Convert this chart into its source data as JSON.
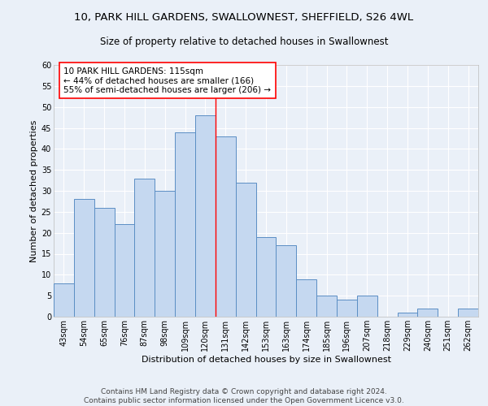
{
  "title_line1": "10, PARK HILL GARDENS, SWALLOWNEST, SHEFFIELD, S26 4WL",
  "title_line2": "Size of property relative to detached houses in Swallownest",
  "xlabel": "Distribution of detached houses by size in Swallownest",
  "ylabel": "Number of detached properties",
  "categories": [
    "43sqm",
    "54sqm",
    "65sqm",
    "76sqm",
    "87sqm",
    "98sqm",
    "109sqm",
    "120sqm",
    "131sqm",
    "142sqm",
    "153sqm",
    "163sqm",
    "174sqm",
    "185sqm",
    "196sqm",
    "207sqm",
    "218sqm",
    "229sqm",
    "240sqm",
    "251sqm",
    "262sqm"
  ],
  "values": [
    8,
    28,
    26,
    22,
    33,
    30,
    44,
    48,
    43,
    32,
    19,
    17,
    9,
    5,
    4,
    5,
    0,
    1,
    2,
    0,
    2
  ],
  "bar_color": "#c5d8f0",
  "bar_edge_color": "#5b8ec4",
  "ylim": [
    0,
    60
  ],
  "yticks": [
    0,
    5,
    10,
    15,
    20,
    25,
    30,
    35,
    40,
    45,
    50,
    55,
    60
  ],
  "vline_x": 7.5,
  "vline_color": "red",
  "annotation_text": "10 PARK HILL GARDENS: 115sqm\n← 44% of detached houses are smaller (166)\n55% of semi-detached houses are larger (206) →",
  "annotation_box_color": "white",
  "annotation_box_edgecolor": "red",
  "footer_line1": "Contains HM Land Registry data © Crown copyright and database right 2024.",
  "footer_line2": "Contains public sector information licensed under the Open Government Licence v3.0.",
  "background_color": "#eaf0f8",
  "grid_color": "#ffffff",
  "title_fontsize": 9.5,
  "subtitle_fontsize": 8.5,
  "axis_label_fontsize": 8,
  "tick_fontsize": 7,
  "annotation_fontsize": 7.5,
  "footer_fontsize": 6.5,
  "ylabel_fontsize": 8
}
